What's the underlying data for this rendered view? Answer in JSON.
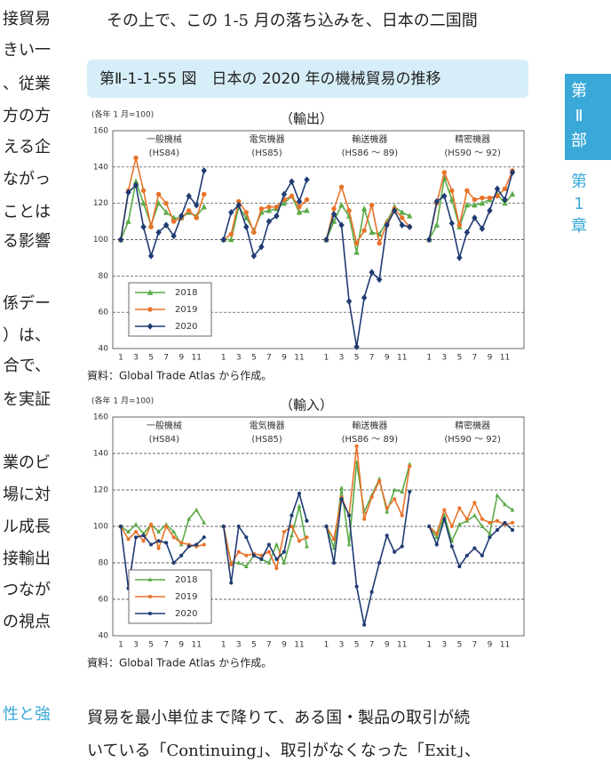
{
  "left_column": [
    "接貿易",
    "きい一",
    "、従業",
    "方の方",
    "える企",
    "ながっ",
    "ことは",
    "る影響",
    "係デー",
    "）は、",
    "合で、",
    "を実証",
    "業のビ",
    "場に対",
    "ル成長",
    "接輸出",
    "つなが",
    "の視点"
  ],
  "left_heading": "性と強",
  "top_text": "その上で、この 1-5 月の落ち込みを、日本の二国間",
  "figure_title": "第Ⅱ-1-1-55 図　日本の 2020 年の機械貿易の推移",
  "side_tab": {
    "part": [
      "第",
      "Ⅱ",
      "部"
    ],
    "chapter": [
      "第",
      "1",
      "章"
    ]
  },
  "bottom_text": [
    "貿易を最小単位まで降りて、ある国・製品の取引が続",
    "いている「Continuing」、取引がなくなった「Exit」、"
  ],
  "chart_data": [
    {
      "type": "line",
      "title": "（輸出）",
      "y_label": "(各年 1 月=100)",
      "source": "資料：Global Trade Atlas から作成。",
      "ylim": [
        40,
        160
      ],
      "yticks": [
        40,
        60,
        80,
        100,
        120,
        140,
        160
      ],
      "grid": true,
      "categories": [
        "1",
        null,
        "3",
        null,
        "5",
        null,
        "7",
        null,
        "9",
        null,
        "11",
        null
      ],
      "panels": [
        {
          "title": "一般機械",
          "subtitle": "(HS84)"
        },
        {
          "title": "電気機器",
          "subtitle": "(HS85)"
        },
        {
          "title": "輸送機器",
          "subtitle": "(HS86 ～ 89)"
        },
        {
          "title": "精密機器",
          "subtitle": "(HS90 ～ 92)"
        }
      ],
      "series": [
        {
          "name": "2018",
          "color": "#5aaa46",
          "marker": "triangle",
          "values": [
            [
              100,
              110,
              132,
              120,
              108,
              120,
              115,
              112,
              112,
              115,
              113,
              118
            ],
            [
              100,
              100,
              118,
              112,
              105,
              115,
              116,
              117,
              120,
              124,
              115,
              116
            ],
            [
              100,
              110,
              119,
              113,
              93,
              117,
              104,
              103,
              110,
              118,
              115,
              113
            ],
            [
              100,
              108,
              134,
              122,
              107,
              119,
              119,
              120,
              122,
              125,
              120,
              125
            ]
          ]
        },
        {
          "name": "2019",
          "color": "#e8732a",
          "marker": "circle",
          "values": [
            [
              100,
              127,
              145,
              127,
              107,
              125,
              120,
              110,
              112,
              116,
              112,
              125
            ],
            [
              100,
              103,
              121,
              115,
              104,
              117,
              118,
              118,
              122,
              124,
              118,
              122
            ],
            [
              100,
              117,
              129,
              116,
              98,
              105,
              119,
              98,
              109,
              117,
              112,
              107
            ],
            [
              100,
              120,
              137,
              127,
              108,
              127,
              122,
              123,
              123,
              124,
              128,
              138
            ]
          ]
        },
        {
          "name": "2020",
          "color": "#1f3b73",
          "marker": "diamond",
          "values": [
            [
              100,
              126,
              130,
              107,
              91,
              104,
              108,
              102,
              113,
              124,
              119,
              138
            ],
            [
              100,
              115,
              119,
              107,
              91,
              96,
              110,
              113,
              125,
              132,
              121,
              133
            ],
            [
              100,
              114,
              108,
              66,
              41,
              68,
              82,
              78,
              108,
              116,
              108,
              107
            ],
            [
              100,
              121,
              124,
              109,
              90,
              104,
              112,
              106,
              116,
              128,
              122,
              137
            ]
          ]
        }
      ]
    },
    {
      "type": "line",
      "title": "（輸入）",
      "y_label": "(各年 1 月=100)",
      "source": "資料：Global Trade Atlas から作成。",
      "ylim": [
        40,
        160
      ],
      "yticks": [
        40,
        60,
        80,
        100,
        120,
        140,
        160
      ],
      "grid": true,
      "categories": [
        "1",
        null,
        "3",
        null,
        "5",
        null,
        "7",
        null,
        "9",
        null,
        "11",
        null
      ],
      "panels": [
        {
          "title": "一般機械",
          "subtitle": "(HS84)"
        },
        {
          "title": "電気機器",
          "subtitle": "(HS85)"
        },
        {
          "title": "輸送機器",
          "subtitle": "(HS86 ～ 89)"
        },
        {
          "title": "精密機器",
          "subtitle": "(HS90 ～ 92)"
        }
      ],
      "series": [
        {
          "name": "2018",
          "color": "#5aaa46",
          "marker": "triangle",
          "values": [
            [
              100,
              97,
              101,
              96,
              101,
              97,
              101,
              97,
              90,
              104,
              109,
              102
            ],
            [
              100,
              80,
              80,
              78,
              84,
              82,
              80,
              90,
              80,
              95,
              111,
              89
            ],
            [
              100,
              88,
              121,
              90,
              135,
              108,
              117,
              126,
              108,
              120,
              119,
              134
            ],
            [
              100,
              94,
              106,
              92,
              101,
              103,
              106,
              100,
              96,
              117,
              112,
              109
            ]
          ]
        },
        {
          "name": "2019",
          "color": "#e8732a",
          "marker": "circle",
          "values": [
            [
              100,
              93,
              97,
              92,
              101,
              88,
              100,
              94,
              91,
              90,
              89,
              90
            ],
            [
              100,
              79,
              86,
              84,
              85,
              84,
              86,
              77,
              97,
              100,
              92,
              94
            ],
            [
              100,
              93,
              116,
              106,
              144,
              104,
              116,
              125,
              110,
              115,
              106,
              133
            ],
            [
              100,
              96,
              109,
              100,
              110,
              104,
              113,
              104,
              102,
              103,
              101,
              102
            ]
          ]
        },
        {
          "name": "2020",
          "color": "#1f3b73",
          "marker": "circle",
          "values": [
            [
              100,
              66,
              94,
              95,
              90,
              92,
              91,
              80,
              84,
              89,
              90,
              94
            ],
            [
              100,
              69,
              100,
              94,
              84,
              82,
              90,
              82,
              86,
              106,
              118,
              103
            ],
            [
              100,
              80,
              115,
              106,
              67,
              46,
              64,
              80,
              95,
              86,
              89,
              119
            ],
            [
              100,
              90,
              104,
              89,
              78,
              84,
              88,
              84,
              94,
              98,
              102,
              98
            ]
          ]
        }
      ]
    }
  ]
}
